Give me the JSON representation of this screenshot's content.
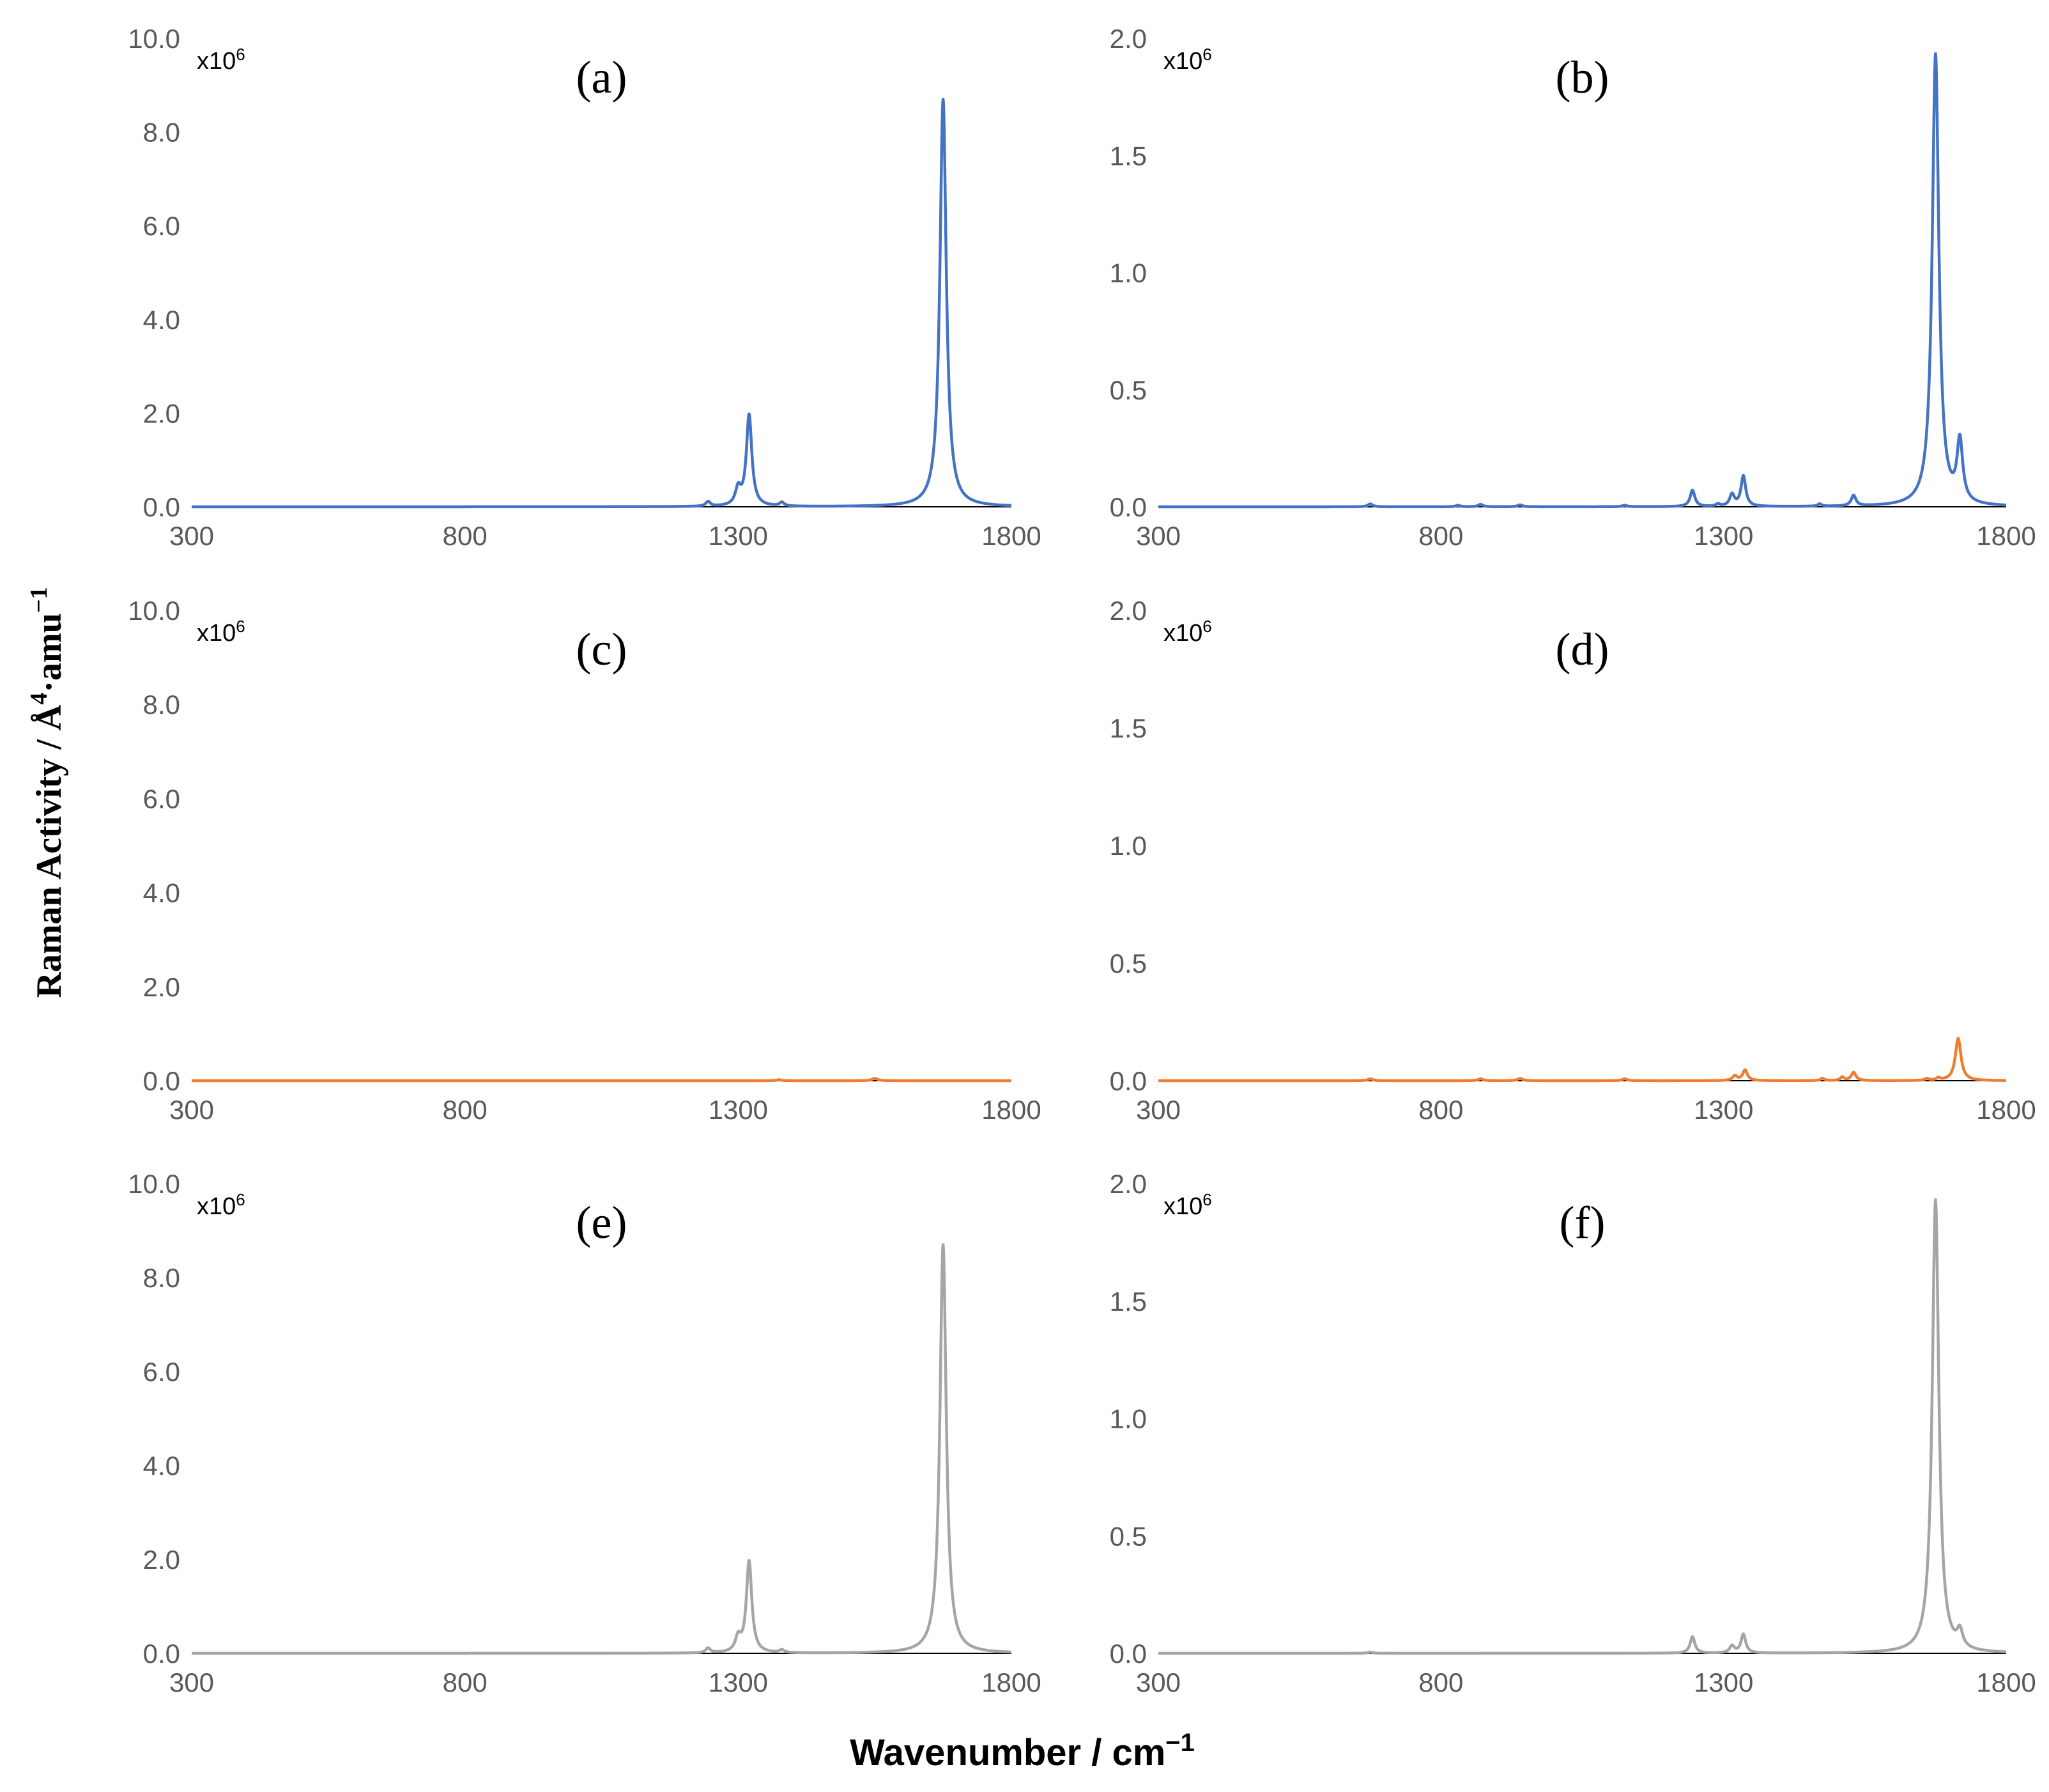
{
  "chart_data": {
    "type": "line",
    "shared_xlabel_text": "Wavenumber / cm",
    "shared_xlabel_sup": "−1",
    "shared_ylabel_text": "Raman Activity / Å",
    "shared_ylabel_sup1": "4",
    "shared_ylabel_mid": "·amu",
    "shared_ylabel_sup2": "−1",
    "multiplier_base": "x10",
    "multiplier_exp": "6",
    "colors": {
      "blue": "#4472C4",
      "orange": "#ED7D31",
      "gray": "#A5A5A5",
      "baseline": "#000000"
    },
    "panels": [
      {
        "label": "(a)",
        "color": "blue",
        "xlim": [
          300,
          1800
        ],
        "ylim": [
          0,
          10
        ],
        "xticks": [
          "300",
          "800",
          "1300",
          "1800"
        ],
        "yticks": [
          "0.0",
          "2.0",
          "4.0",
          "6.0",
          "8.0",
          "10.0"
        ],
        "peaks": [
          {
            "x": 1245,
            "h": 0.1,
            "w": 5
          },
          {
            "x": 1300,
            "h": 0.35,
            "w": 6
          },
          {
            "x": 1320,
            "h": 1.95,
            "w": 6
          },
          {
            "x": 1380,
            "h": 0.08,
            "w": 5
          },
          {
            "x": 1675,
            "h": 8.7,
            "w": 7
          }
        ]
      },
      {
        "label": "(b)",
        "color": "blue",
        "xlim": [
          300,
          1800
        ],
        "ylim": [
          0,
          2
        ],
        "xticks": [
          "300",
          "800",
          "1300",
          "1800"
        ],
        "yticks": [
          "0.0",
          "0.5",
          "1.0",
          "1.5",
          "2.0"
        ],
        "peaks": [
          {
            "x": 675,
            "h": 0.012,
            "w": 5
          },
          {
            "x": 830,
            "h": 0.006,
            "w": 5
          },
          {
            "x": 870,
            "h": 0.01,
            "w": 5
          },
          {
            "x": 940,
            "h": 0.008,
            "w": 5
          },
          {
            "x": 1125,
            "h": 0.006,
            "w": 5
          },
          {
            "x": 1245,
            "h": 0.07,
            "w": 5
          },
          {
            "x": 1290,
            "h": 0.01,
            "w": 4
          },
          {
            "x": 1315,
            "h": 0.05,
            "w": 5
          },
          {
            "x": 1335,
            "h": 0.13,
            "w": 5
          },
          {
            "x": 1470,
            "h": 0.01,
            "w": 4
          },
          {
            "x": 1530,
            "h": 0.045,
            "w": 5
          },
          {
            "x": 1675,
            "h": 1.93,
            "w": 7
          },
          {
            "x": 1718,
            "h": 0.26,
            "w": 6
          }
        ]
      },
      {
        "label": "(c)",
        "color": "orange",
        "xlim": [
          300,
          1800
        ],
        "ylim": [
          0,
          10
        ],
        "xticks": [
          "300",
          "800",
          "1300",
          "1800"
        ],
        "yticks": [
          "0.0",
          "2.0",
          "4.0",
          "6.0",
          "8.0",
          "10.0"
        ],
        "peaks": [
          {
            "x": 1375,
            "h": 0.02,
            "w": 5
          },
          {
            "x": 1550,
            "h": 0.05,
            "w": 6
          }
        ]
      },
      {
        "label": "(d)",
        "color": "orange",
        "xlim": [
          300,
          1800
        ],
        "ylim": [
          0,
          2
        ],
        "xticks": [
          "300",
          "800",
          "1300",
          "1800"
        ],
        "yticks": [
          "0.0",
          "0.5",
          "1.0",
          "1.5",
          "2.0"
        ],
        "peaks": [
          {
            "x": 675,
            "h": 0.008,
            "w": 5
          },
          {
            "x": 870,
            "h": 0.008,
            "w": 5
          },
          {
            "x": 940,
            "h": 0.01,
            "w": 5
          },
          {
            "x": 1125,
            "h": 0.008,
            "w": 5
          },
          {
            "x": 1320,
            "h": 0.02,
            "w": 5
          },
          {
            "x": 1338,
            "h": 0.045,
            "w": 5
          },
          {
            "x": 1475,
            "h": 0.01,
            "w": 4
          },
          {
            "x": 1510,
            "h": 0.015,
            "w": 4
          },
          {
            "x": 1530,
            "h": 0.035,
            "w": 5
          },
          {
            "x": 1660,
            "h": 0.008,
            "w": 4
          },
          {
            "x": 1680,
            "h": 0.01,
            "w": 4
          },
          {
            "x": 1715,
            "h": 0.18,
            "w": 6
          }
        ]
      },
      {
        "label": "(e)",
        "color": "gray",
        "xlim": [
          300,
          1800
        ],
        "ylim": [
          0,
          10
        ],
        "xticks": [
          "300",
          "800",
          "1300",
          "1800"
        ],
        "yticks": [
          "0.0",
          "2.0",
          "4.0",
          "6.0",
          "8.0",
          "10.0"
        ],
        "peaks": [
          {
            "x": 1245,
            "h": 0.1,
            "w": 5
          },
          {
            "x": 1300,
            "h": 0.3,
            "w": 6
          },
          {
            "x": 1320,
            "h": 1.95,
            "w": 6
          },
          {
            "x": 1380,
            "h": 0.06,
            "w": 5
          },
          {
            "x": 1675,
            "h": 8.7,
            "w": 7
          }
        ]
      },
      {
        "label": "(f)",
        "color": "gray",
        "xlim": [
          300,
          1800
        ],
        "ylim": [
          0,
          2
        ],
        "xticks": [
          "300",
          "800",
          "1300",
          "1800"
        ],
        "yticks": [
          "0.0",
          "0.5",
          "1.0",
          "1.5",
          "2.0"
        ],
        "peaks": [
          {
            "x": 675,
            "h": 0.005,
            "w": 5
          },
          {
            "x": 1245,
            "h": 0.07,
            "w": 5
          },
          {
            "x": 1315,
            "h": 0.03,
            "w": 5
          },
          {
            "x": 1335,
            "h": 0.08,
            "w": 5
          },
          {
            "x": 1675,
            "h": 1.93,
            "w": 7
          },
          {
            "x": 1718,
            "h": 0.07,
            "w": 6
          }
        ]
      }
    ]
  }
}
